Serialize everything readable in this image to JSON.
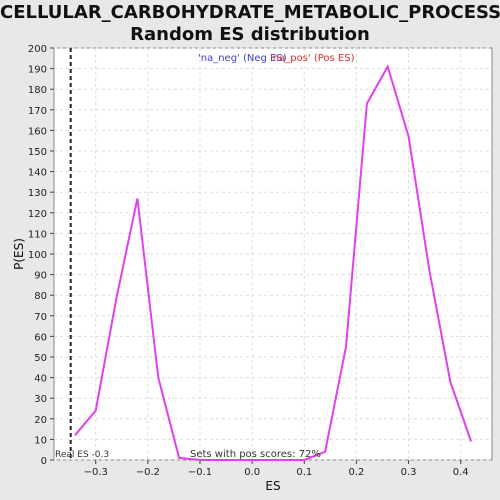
{
  "chart_data": {
    "type": "line",
    "title_line1": "CELLULAR_CARBOHYDRATE_METABOLIC_PROCESS:",
    "title_line2": "Random ES distribution",
    "xlabel": "ES",
    "ylabel": "P(ES)",
    "xlim": [
      -0.38,
      0.46
    ],
    "ylim": [
      0,
      200
    ],
    "xticks": [
      -0.3,
      -0.2,
      -0.1,
      0.0,
      0.1,
      0.2,
      0.3,
      0.4
    ],
    "xtick_labels": [
      "−0.3",
      "−0.2",
      "−0.1",
      "0.0",
      "0.1",
      "0.2",
      "0.3",
      "0.4"
    ],
    "yticks": [
      0,
      10,
      20,
      30,
      40,
      50,
      60,
      70,
      80,
      90,
      100,
      110,
      120,
      130,
      140,
      150,
      160,
      170,
      180,
      190,
      200
    ],
    "grid": true,
    "legend": [
      {
        "label": "'na_neg' (Neg ES)",
        "color": "#4040cc"
      },
      {
        "label": "'na_pos' (Pos ES)",
        "color": "#d83030"
      }
    ],
    "legend_placement": "top-center",
    "series": [
      {
        "color": "#e040f0",
        "x": [
          -0.34,
          -0.3,
          -0.26,
          -0.22,
          -0.18,
          -0.14,
          -0.1,
          -0.06,
          -0.02,
          0.02,
          0.06,
          0.1,
          0.14,
          0.18,
          0.22,
          0.26,
          0.3,
          0.34,
          0.38,
          0.42
        ],
        "y": [
          12,
          24,
          79,
          127,
          40,
          1,
          0,
          0,
          0,
          0,
          0,
          0,
          4,
          55,
          173,
          191,
          157,
          92,
          38,
          9
        ]
      }
    ],
    "marker": {
      "x": -0.348,
      "label": "Real ES -0.3"
    },
    "annotation": "Sets with pos scores: 72%"
  }
}
